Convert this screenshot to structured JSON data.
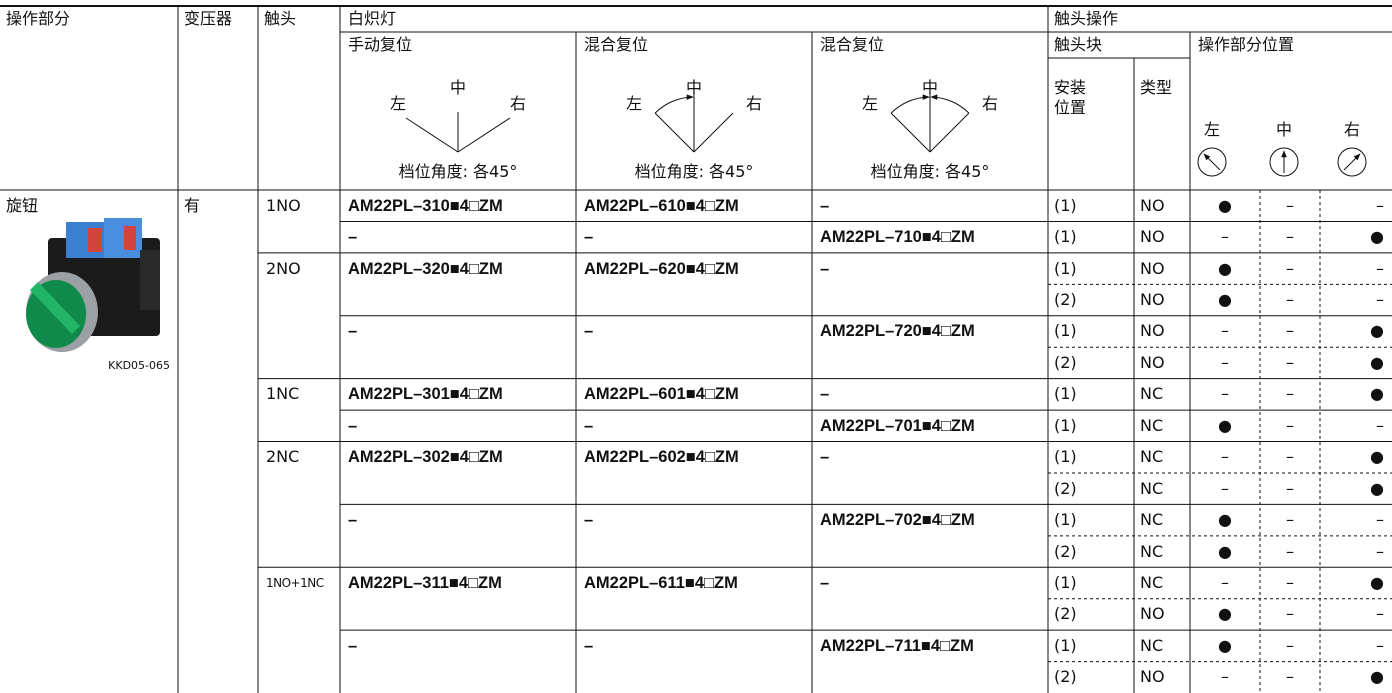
{
  "header": {
    "operation_part": "操作部分",
    "transformer": "变压器",
    "contact": "触头",
    "lamp": "白炽灯",
    "contact_operation": "触头操作",
    "reset_types": [
      "手动复位",
      "混合复位",
      "混合复位"
    ],
    "diagrams": [
      {
        "left": "左",
        "center": "中",
        "right": "右",
        "note": "档位角度: 各45°"
      },
      {
        "left": "左",
        "center": "中",
        "right": "右",
        "note": "档位角度: 各45°"
      },
      {
        "left": "左",
        "center": "中",
        "right": "右",
        "note": "档位角度: 各45°"
      }
    ],
    "contact_block": "触头块",
    "mount_position": "安装位置",
    "type": "类型",
    "position_heading": "操作部分位置",
    "positions": [
      "左",
      "中",
      "右"
    ]
  },
  "body": {
    "operation": "旋钮",
    "image_caption": "KKD05-065",
    "transformer": "有",
    "groups": [
      {
        "contact": "1NO",
        "models": [
          {
            "manual": "AM22PL–310■4□ZM",
            "mixed_a": "AM22PL–610■4□ZM",
            "mixed_b": "–",
            "blocks": [
              {
                "position": "(1)",
                "type": "NO",
                "left": "●",
                "center": "–",
                "right": "–"
              }
            ]
          },
          {
            "manual": "–",
            "mixed_a": "–",
            "mixed_b": "AM22PL–710■4□ZM",
            "blocks": [
              {
                "position": "(1)",
                "type": "NO",
                "left": "–",
                "center": "–",
                "right": "●"
              }
            ]
          }
        ]
      },
      {
        "contact": "2NO",
        "models": [
          {
            "manual": "AM22PL–320■4□ZM",
            "mixed_a": "AM22PL–620■4□ZM",
            "mixed_b": "–",
            "blocks": [
              {
                "position": "(1)",
                "type": "NO",
                "left": "●",
                "center": "–",
                "right": "–"
              },
              {
                "position": "(2)",
                "type": "NO",
                "left": "●",
                "center": "–",
                "right": "–"
              }
            ]
          },
          {
            "manual": "–",
            "mixed_a": "–",
            "mixed_b": "AM22PL–720■4□ZM",
            "blocks": [
              {
                "position": "(1)",
                "type": "NO",
                "left": "–",
                "center": "–",
                "right": "●"
              },
              {
                "position": "(2)",
                "type": "NO",
                "left": "–",
                "center": "–",
                "right": "●"
              }
            ]
          }
        ]
      },
      {
        "contact": "1NC",
        "models": [
          {
            "manual": "AM22PL–301■4□ZM",
            "mixed_a": "AM22PL–601■4□ZM",
            "mixed_b": "–",
            "blocks": [
              {
                "position": "(1)",
                "type": "NC",
                "left": "–",
                "center": "–",
                "right": "●"
              }
            ]
          },
          {
            "manual": "–",
            "mixed_a": "–",
            "mixed_b": "AM22PL–701■4□ZM",
            "blocks": [
              {
                "position": "(1)",
                "type": "NC",
                "left": "●",
                "center": "–",
                "right": "–"
              }
            ]
          }
        ]
      },
      {
        "contact": "2NC",
        "models": [
          {
            "manual": "AM22PL–302■4□ZM",
            "mixed_a": "AM22PL–602■4□ZM",
            "mixed_b": "–",
            "blocks": [
              {
                "position": "(1)",
                "type": "NC",
                "left": "–",
                "center": "–",
                "right": "●"
              },
              {
                "position": "(2)",
                "type": "NC",
                "left": "–",
                "center": "–",
                "right": "●"
              }
            ]
          },
          {
            "manual": "–",
            "mixed_a": "–",
            "mixed_b": "AM22PL–702■4□ZM",
            "blocks": [
              {
                "position": "(1)",
                "type": "NC",
                "left": "●",
                "center": "–",
                "right": "–"
              },
              {
                "position": "(2)",
                "type": "NC",
                "left": "●",
                "center": "–",
                "right": "–"
              }
            ]
          }
        ]
      },
      {
        "contact": "1NO+1NC",
        "models": [
          {
            "manual": "AM22PL–311■4□ZM",
            "mixed_a": "AM22PL–611■4□ZM",
            "mixed_b": "–",
            "blocks": [
              {
                "position": "(1)",
                "type": "NC",
                "left": "–",
                "center": "–",
                "right": "●"
              },
              {
                "position": "(2)",
                "type": "NO",
                "left": "●",
                "center": "–",
                "right": "–"
              }
            ]
          },
          {
            "manual": "–",
            "mixed_a": "–",
            "mixed_b": "AM22PL–711■4□ZM",
            "blocks": [
              {
                "position": "(1)",
                "type": "NC",
                "left": "●",
                "center": "–",
                "right": "–"
              },
              {
                "position": "(2)",
                "type": "NO",
                "left": "–",
                "center": "–",
                "right": "●"
              }
            ]
          }
        ]
      }
    ]
  }
}
